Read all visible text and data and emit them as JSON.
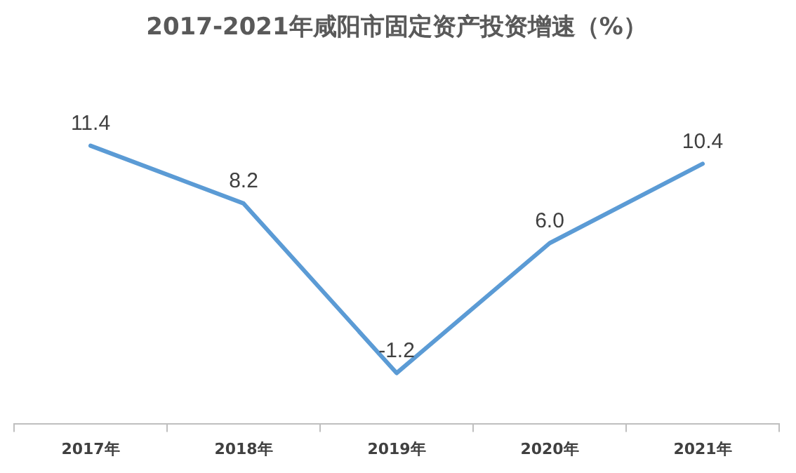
{
  "chart_data": {
    "type": "line",
    "title": "2017-2021年咸阳市固定资产投资增速（%）",
    "categories": [
      "2017年",
      "2018年",
      "2019年",
      "2020年",
      "2021年"
    ],
    "series": [
      {
        "color": "#5b9bd5",
        "values": [
          11.4,
          8.2,
          -1.2,
          6.0,
          10.4
        ],
        "value_labels": [
          "11.4",
          "8.2",
          "-1.2",
          "6.0",
          "10.4"
        ]
      }
    ],
    "tick_labels": "x",
    "grid": false,
    "legend": false,
    "marker": "none",
    "line_style": "solid"
  }
}
